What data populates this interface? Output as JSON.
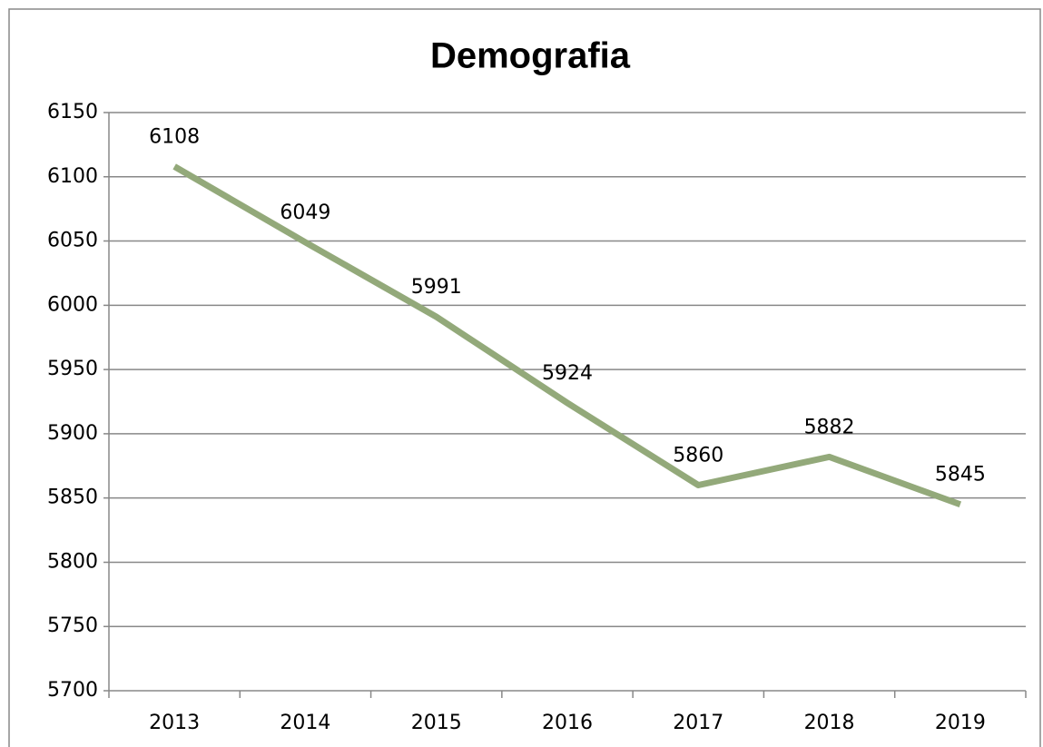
{
  "chart_data": {
    "type": "line",
    "title": "Demografia",
    "categories": [
      "2013",
      "2014",
      "2015",
      "2016",
      "2017",
      "2018",
      "2019"
    ],
    "values": [
      6108,
      6049,
      5991,
      5924,
      5860,
      5882,
      5845
    ],
    "color": "#93a97a",
    "ylim": [
      5700,
      6150
    ],
    "yticks": [
      5700,
      5750,
      5800,
      5850,
      5900,
      5950,
      6000,
      6050,
      6100,
      6150
    ],
    "grid": true
  }
}
